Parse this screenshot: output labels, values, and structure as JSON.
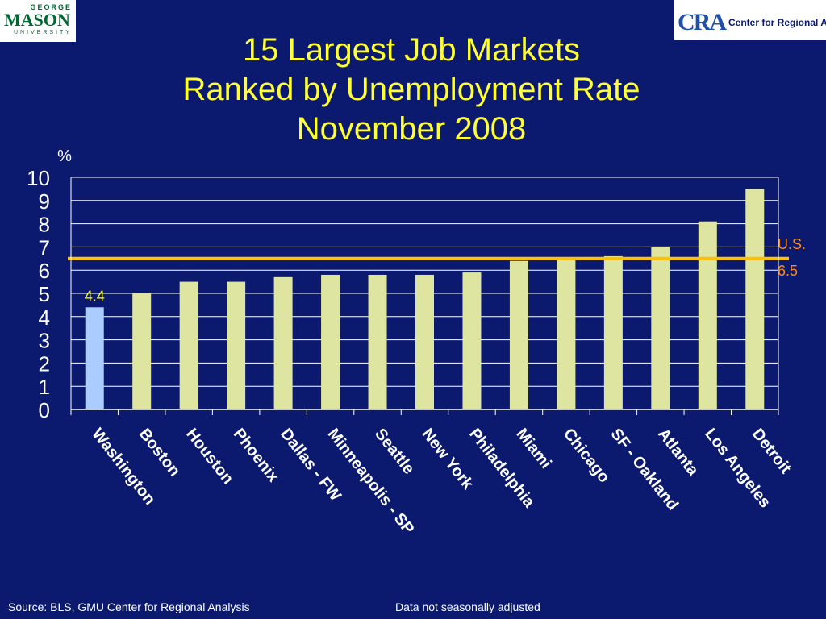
{
  "logos": {
    "gmu": {
      "top": "GEORGE",
      "middle": "MASON",
      "bottom": "UNIVERSITY"
    },
    "cra": {
      "mark": "CRA",
      "text": "Center for Regional Analysis"
    }
  },
  "title_lines": [
    "15 Largest Job Markets",
    "Ranked by Unemployment Rate",
    "November 2008"
  ],
  "footer": {
    "source": "Source: BLS, GMU Center for Regional Analysis",
    "note": "Data not seasonally adjusted"
  },
  "chart_data": {
    "type": "bar",
    "ylabel": "%",
    "ylim": [
      0,
      10
    ],
    "yticks": [
      0,
      1,
      2,
      3,
      4,
      5,
      6,
      7,
      8,
      9,
      10
    ],
    "grid": true,
    "categories": [
      "Washington",
      "Boston",
      "Houston",
      "Phoenix",
      "Dallas - FW",
      "Minneapolis - SP",
      "Seattle",
      "New York",
      "Philadelphia",
      "Miami",
      "Chicago",
      "SF - Oakland",
      "Atlanta",
      "Los Angeles",
      "Detroit"
    ],
    "values": [
      4.4,
      5.0,
      5.5,
      5.5,
      5.7,
      5.8,
      5.8,
      5.8,
      5.9,
      6.4,
      6.5,
      6.6,
      7.0,
      8.1,
      9.5
    ],
    "highlight_index": 0,
    "highlight_label": "4.4",
    "colors": {
      "bar": "#dde5a0",
      "highlight": "#aaccff",
      "reference": "#ffc000",
      "grid": "#ffffff",
      "axis_text": "#ffffff",
      "reference_text": "#ff8c1a",
      "highlight_text": "#ffff33"
    },
    "reference_line": {
      "value": 6.5,
      "label_line1": "U.S.",
      "label_line2": "6.5"
    }
  }
}
